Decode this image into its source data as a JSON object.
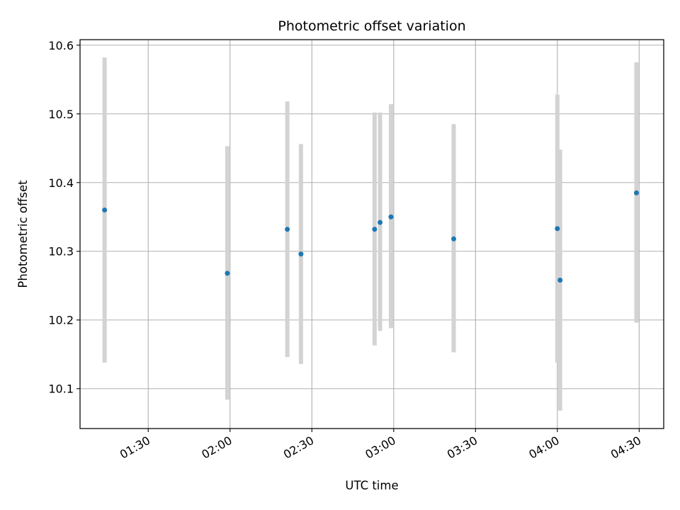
{
  "chart_data": {
    "type": "scatter",
    "title": "Photometric offset variation",
    "xlabel": "UTC time",
    "ylabel": "Photometric offset",
    "x_ticks": [
      "01:30",
      "02:00",
      "02:30",
      "03:00",
      "03:30",
      "04:00",
      "04:30"
    ],
    "y_ticks": [
      "10.1",
      "10.2",
      "10.3",
      "10.4",
      "10.5",
      "10.6"
    ],
    "xlim": [
      "01:05",
      "04:39"
    ],
    "ylim": [
      10.042,
      10.608
    ],
    "grid": true,
    "colors": {
      "marker": "#1f77b4",
      "errorbar": "#d3d3d3",
      "grid": "#b0b0b0"
    },
    "series": [
      {
        "points": [
          {
            "x": "01:14",
            "y": 10.36,
            "ylow": 10.138,
            "yhigh": 10.582
          },
          {
            "x": "01:59",
            "y": 10.268,
            "ylow": 10.084,
            "yhigh": 10.453
          },
          {
            "x": "02:21",
            "y": 10.332,
            "ylow": 10.146,
            "yhigh": 10.518
          },
          {
            "x": "02:26",
            "y": 10.296,
            "ylow": 10.136,
            "yhigh": 10.456
          },
          {
            "x": "02:53",
            "y": 10.332,
            "ylow": 10.163,
            "yhigh": 10.502
          },
          {
            "x": "02:55",
            "y": 10.342,
            "ylow": 10.184,
            "yhigh": 10.502
          },
          {
            "x": "02:59",
            "y": 10.35,
            "ylow": 10.188,
            "yhigh": 10.514
          },
          {
            "x": "03:22",
            "y": 10.318,
            "ylow": 10.153,
            "yhigh": 10.485
          },
          {
            "x": "04:00",
            "y": 10.333,
            "ylow": 10.138,
            "yhigh": 10.528
          },
          {
            "x": "04:01",
            "y": 10.258,
            "ylow": 10.068,
            "yhigh": 10.448
          },
          {
            "x": "04:29",
            "y": 10.385,
            "ylow": 10.196,
            "yhigh": 10.575
          }
        ]
      }
    ]
  }
}
